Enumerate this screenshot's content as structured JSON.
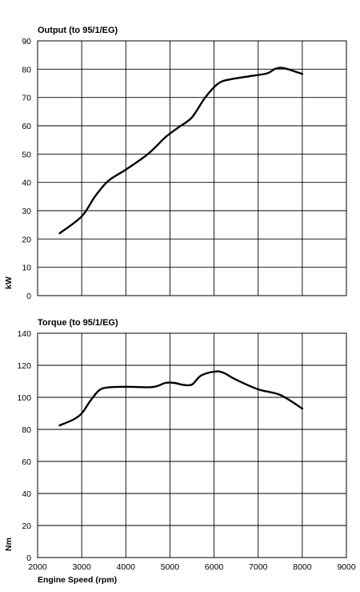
{
  "chart_data": [
    {
      "type": "line",
      "title": "Output (to 95/1/EG)",
      "xlabel": "",
      "ylabel": "kW",
      "xlim": [
        2000,
        9000
      ],
      "ylim": [
        0,
        90
      ],
      "x_ticks": [
        2000,
        3000,
        4000,
        5000,
        6000,
        7000,
        8000,
        9000
      ],
      "y_ticks": [
        0,
        10,
        20,
        30,
        40,
        50,
        60,
        70,
        80,
        90
      ],
      "show_x_tick_labels": false,
      "grid": true,
      "series": [
        {
          "x": [
            2500,
            3000,
            3300,
            3600,
            4000,
            4500,
            4900,
            5200,
            5500,
            5800,
            6100,
            6400,
            6800,
            7200,
            7400,
            7600,
            8000
          ],
          "y": [
            22,
            28,
            35,
            40.5,
            44.5,
            50,
            56,
            59.5,
            63,
            70,
            75,
            76.5,
            77.5,
            78.5,
            80.2,
            80.3,
            78.3
          ]
        }
      ]
    },
    {
      "type": "line",
      "title": "Torque  (to 95/1/EG)",
      "xlabel": "Engine Speed (rpm)",
      "ylabel": "Nm",
      "xlim": [
        2000,
        9000
      ],
      "ylim": [
        0,
        140
      ],
      "x_ticks": [
        2000,
        3000,
        4000,
        5000,
        6000,
        7000,
        8000,
        9000
      ],
      "y_ticks": [
        0,
        20,
        40,
        60,
        80,
        100,
        120,
        140
      ],
      "show_x_tick_labels": true,
      "grid": true,
      "series": [
        {
          "x": [
            2500,
            2800,
            3000,
            3200,
            3400,
            3600,
            4000,
            4600,
            4900,
            5100,
            5300,
            5500,
            5700,
            6000,
            6200,
            6500,
            7000,
            7500,
            8000
          ],
          "y": [
            82.5,
            86,
            90,
            98,
            104.5,
            106.2,
            106.6,
            106.4,
            109,
            109,
            107.8,
            108,
            113.5,
            116,
            115.5,
            111,
            105,
            101.5,
            93
          ]
        }
      ]
    }
  ]
}
